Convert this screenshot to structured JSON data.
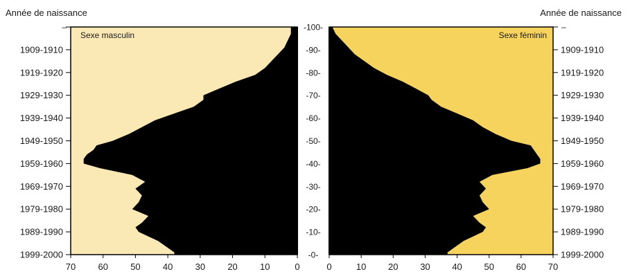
{
  "chart_data": {
    "type": "area",
    "header_left": "Année de naissance",
    "header_right": "Année de naissance",
    "left_panel_label": "Sexe masculin",
    "right_panel_label": "Sexe féminin",
    "birth_year_ticks": [
      "–",
      "1909-1910",
      "1919-1920",
      "1929-1930",
      "1939-1940",
      "1949-1950",
      "1959-1960",
      "1969-1970",
      "1979-1980",
      "1989-1990",
      "1999-2000"
    ],
    "age_ticks": [
      "-100-",
      "-90-",
      "-80-",
      "-70-",
      "-60-",
      "-50-",
      "-40-",
      "-30-",
      "-20-",
      "-10-",
      "-0-"
    ],
    "x_ticks_left": [
      "70",
      "60",
      "50",
      "40",
      "30",
      "20",
      "10",
      "0"
    ],
    "x_ticks_right": [
      "0",
      "10",
      "20",
      "30",
      "40",
      "50",
      "60",
      "70"
    ],
    "xlim": [
      0,
      70
    ],
    "ylim": [
      0,
      100
    ],
    "colors": {
      "male_bg": "#fae9b4",
      "female_bg": "#f6d35c",
      "population": "#000000"
    },
    "series": [
      {
        "name": "Sexe masculin",
        "ages": [
          0,
          1,
          3,
          6,
          8,
          10,
          12,
          14,
          17,
          20,
          23,
          26,
          29,
          32,
          35,
          38,
          40,
          42,
          44,
          46,
          48,
          50,
          53,
          56,
          59,
          62,
          65,
          68,
          70,
          73,
          76,
          79,
          82,
          85,
          88,
          91,
          94,
          97,
          100
        ],
        "values": [
          38,
          38,
          40,
          43,
          46,
          49,
          50,
          48,
          46,
          51,
          49,
          48,
          50,
          47,
          51,
          61,
          66,
          66,
          65,
          63,
          62,
          57,
          52,
          48,
          44,
          38,
          32,
          29,
          29,
          24,
          19,
          13,
          10,
          8,
          6,
          4,
          3,
          2,
          2
        ]
      },
      {
        "name": "Sexe féminin",
        "ages": [
          0,
          1,
          3,
          6,
          8,
          10,
          12,
          14,
          17,
          20,
          23,
          26,
          29,
          32,
          35,
          38,
          40,
          42,
          44,
          46,
          48,
          50,
          53,
          56,
          59,
          62,
          65,
          68,
          70,
          73,
          76,
          79,
          82,
          85,
          88,
          91,
          94,
          97,
          100
        ],
        "values": [
          37,
          37,
          39,
          42,
          45,
          48,
          49,
          47,
          45,
          50,
          48,
          47,
          49,
          47,
          51,
          62,
          66,
          66,
          65,
          64,
          63,
          57,
          52,
          48,
          45,
          40,
          35,
          32,
          31,
          27,
          23,
          18,
          14,
          11,
          8,
          6,
          4,
          2,
          1
        ]
      }
    ]
  }
}
